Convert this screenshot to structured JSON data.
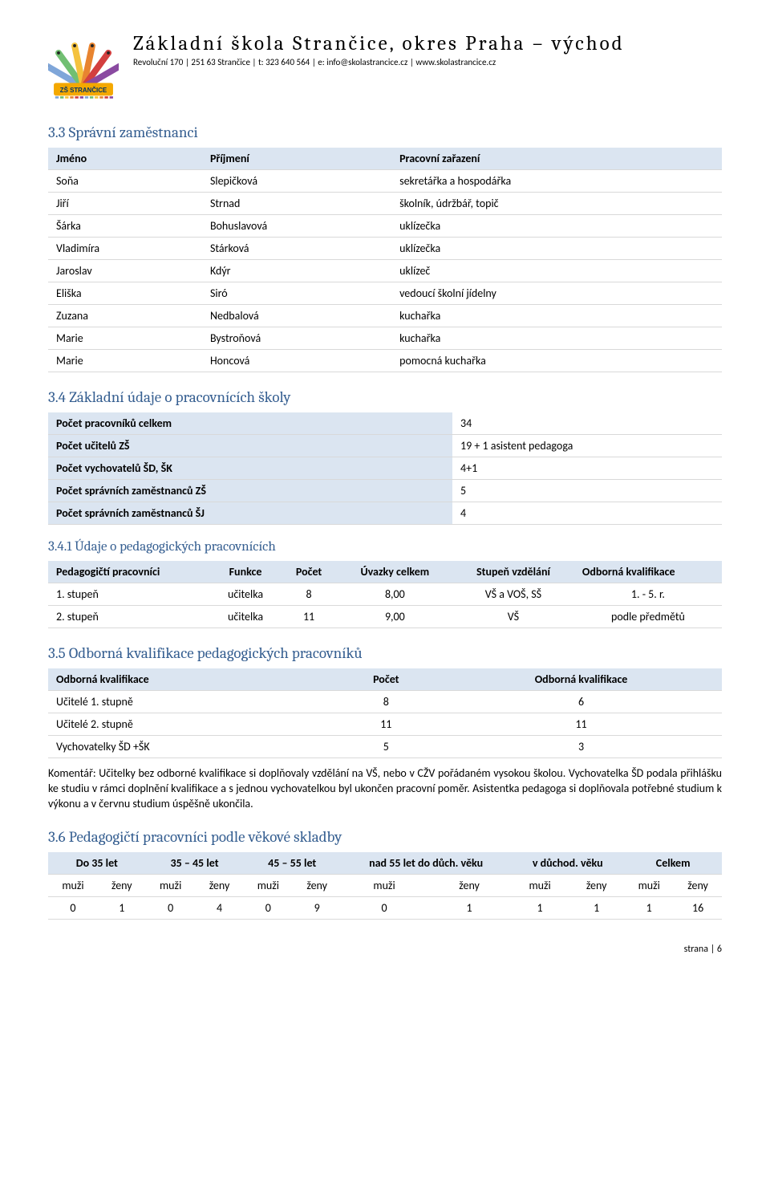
{
  "header": {
    "title": "Základní škola Strančice, okres Praha – východ",
    "subtitle": "Revoluční 170 | 251 63 Strančice | t: 323 640 564 | e: info@skolastrancice.cz | www.skolastrancice.cz",
    "logo": {
      "pencil_colors": [
        "#7fa6d9",
        "#71bf72",
        "#f4c23e",
        "#e88430",
        "#d33f3f",
        "#8a4aa1"
      ],
      "band_color": "#f4a800",
      "band_text": "ZŠ STRANČICE",
      "text_color": "#003468"
    }
  },
  "sec33": {
    "heading": "3.3   Správní zaměstnanci",
    "cols": [
      "Jméno",
      "Příjmení",
      "Pracovní zařazení"
    ],
    "rows": [
      [
        "Soňa",
        "Slepičková",
        "sekretářka a hospodářka"
      ],
      [
        "Jiří",
        "Strnad",
        "školník, údržbář, topič"
      ],
      [
        "Šárka",
        "Bohuslavová",
        "uklízečka"
      ],
      [
        "Vladimíra",
        "Stárková",
        "uklízečka"
      ],
      [
        "Jaroslav",
        "Kdýr",
        "uklízeč"
      ],
      [
        "Eliška",
        "Siró",
        "vedoucí školní jídelny"
      ],
      [
        "Zuzana",
        "Nedbalová",
        "kuchařka"
      ],
      [
        "Marie",
        "Bystroňová",
        "kuchařka"
      ],
      [
        "Marie",
        "Honcová",
        "pomocná kuchařka"
      ]
    ]
  },
  "sec34": {
    "heading": "3.4   Základní údaje o pracovnících školy",
    "rows": [
      [
        "Počet pracovníků celkem",
        "34"
      ],
      [
        "Počet učitelů ZŠ",
        "19 + 1 asistent pedagoga"
      ],
      [
        "Počet vychovatelů ŠD, ŠK",
        "4+1"
      ],
      [
        "Počet správních zaměstnanců ZŠ",
        "5"
      ],
      [
        "Počet správních zaměstnanců ŠJ",
        "4"
      ]
    ]
  },
  "sec341": {
    "heading": "3.4.1   Údaje o pedagogických pracovnících",
    "cols": [
      "Pedagogičtí pracovníci",
      "Funkce",
      "Počet",
      "Úvazky celkem",
      "Stupeň vzdělání",
      "Odborná kvalifikace"
    ],
    "rows": [
      [
        "1. stupeň",
        "učitelka",
        "8",
        "8,00",
        "VŠ a VOŠ, SŠ",
        "1. - 5. r."
      ],
      [
        "2. stupeň",
        "učitelka",
        "11",
        "9,00",
        "VŠ",
        "podle předmětů"
      ]
    ]
  },
  "sec35": {
    "heading": "3.5   Odborná kvalifikace pedagogických pracovníků",
    "cols": [
      "Odborná kvalifikace",
      "Počet",
      "Odborná kvalifikace"
    ],
    "rows": [
      [
        "Učitelé 1. stupně",
        "8",
        "6"
      ],
      [
        "Učitelé 2. stupně",
        "11",
        "11"
      ],
      [
        "Vychovatelky ŠD +ŠK",
        "5",
        "3"
      ]
    ]
  },
  "comment": "Komentář: Učitelky bez odborné kvalifikace si doplňovaly vzdělání na VŠ, nebo v CŽV pořádaném vysokou školou. Vychovatelka ŠD podala přihlášku ke studiu v rámci doplnění kvalifikace a s jednou vychovatelkou byl ukončen pracovní poměr. Asistentka pedagoga si doplňovala potřebné studium k výkonu a v červnu studium úspěšně ukončila.",
  "sec36": {
    "heading": "3.6   Pedagogičtí pracovníci podle věkové skladby",
    "top_cols": [
      "Do 35 let",
      "35 – 45 let",
      "45 – 55 let",
      "nad 55 let do důch. věku",
      "v důchod. věku",
      "Celkem"
    ],
    "sub": {
      "m": "muži",
      "z": "ženy"
    },
    "row": [
      "0",
      "1",
      "0",
      "4",
      "0",
      "9",
      "0",
      "1",
      "1",
      "1",
      "1",
      "16"
    ]
  },
  "footer": "strana | 6"
}
